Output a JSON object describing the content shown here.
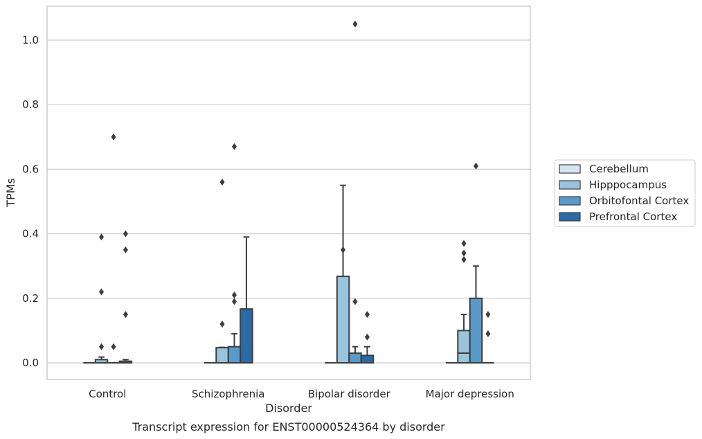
{
  "chart_data": {
    "type": "boxplot",
    "title": "Transcript expression for ENST00000524364 by disorder",
    "xlabel": "Disorder",
    "ylabel": "TPMs",
    "ylim": [
      -0.05,
      1.1
    ],
    "yticks": [
      0.0,
      0.2,
      0.4,
      0.6,
      0.8,
      1.0
    ],
    "grid": "horizontal",
    "legend_position": "right",
    "categories": [
      "Control",
      "Schizophrenia",
      "Bipolar disorder",
      "Major depression"
    ],
    "series": [
      {
        "name": "Cerebellum",
        "color": "#d6e5f3",
        "boxes": [
          {
            "q1": 0,
            "median": 0,
            "q3": 0,
            "whislo": 0,
            "whishi": 0,
            "fliers": []
          },
          {
            "q1": 0,
            "median": 0,
            "q3": 0,
            "whislo": 0,
            "whishi": 0,
            "fliers": []
          },
          {
            "q1": 0,
            "median": 0,
            "q3": 0,
            "whislo": 0,
            "whishi": 0,
            "fliers": []
          },
          {
            "q1": 0,
            "median": 0,
            "q3": 0,
            "whislo": 0,
            "whishi": 0,
            "fliers": []
          }
        ]
      },
      {
        "name": "Hipppocampus",
        "color": "#9ac4dd",
        "boxes": [
          {
            "q1": 0,
            "median": 0,
            "q3": 0.01,
            "whislo": 0,
            "whishi": 0.018,
            "fliers": [
              0.05,
              0.22,
              0.39
            ]
          },
          {
            "q1": 0,
            "median": 0,
            "q3": 0.047,
            "whislo": 0,
            "whishi": 0.048,
            "fliers": [
              0.12,
              0.56
            ]
          },
          {
            "q1": 0,
            "median": 0,
            "q3": 0.268,
            "whislo": 0,
            "whishi": 0.55,
            "fliers": [
              0.35
            ]
          },
          {
            "q1": 0,
            "median": 0.03,
            "q3": 0.1,
            "whislo": 0,
            "whishi": 0.15,
            "fliers": [
              0.32,
              0.34,
              0.37
            ]
          }
        ]
      },
      {
        "name": "Orbitofontal Cortex",
        "color": "#5a9ac8",
        "boxes": [
          {
            "q1": 0,
            "median": 0,
            "q3": 0,
            "whislo": 0,
            "whishi": 0,
            "fliers": [
              0.05,
              0.7
            ]
          },
          {
            "q1": 0,
            "median": 0,
            "q3": 0.05,
            "whislo": 0,
            "whishi": 0.09,
            "fliers": [
              0.19,
              0.21,
              0.67
            ]
          },
          {
            "q1": 0,
            "median": 0,
            "q3": 0.03,
            "whislo": 0,
            "whishi": 0.05,
            "fliers": [
              0.19,
              1.05
            ]
          },
          {
            "q1": 0,
            "median": 0,
            "q3": 0.2,
            "whislo": 0,
            "whishi": 0.3,
            "fliers": [
              0.61
            ]
          }
        ]
      },
      {
        "name": "Prefrontal Cortex",
        "color": "#2b6aa5",
        "boxes": [
          {
            "q1": 0,
            "median": 0,
            "q3": 0.005,
            "whislo": 0,
            "whishi": 0.01,
            "fliers": [
              0.15,
              0.35,
              0.4
            ]
          },
          {
            "q1": 0,
            "median": 0,
            "q3": 0.167,
            "whislo": 0,
            "whishi": 0.39,
            "fliers": []
          },
          {
            "q1": 0,
            "median": 0,
            "q3": 0.023,
            "whislo": 0,
            "whishi": 0.05,
            "fliers": [
              0.08,
              0.15
            ]
          },
          {
            "q1": 0,
            "median": 0,
            "q3": 0,
            "whislo": 0,
            "whishi": 0,
            "fliers": [
              0.09,
              0.15
            ]
          }
        ]
      }
    ]
  }
}
